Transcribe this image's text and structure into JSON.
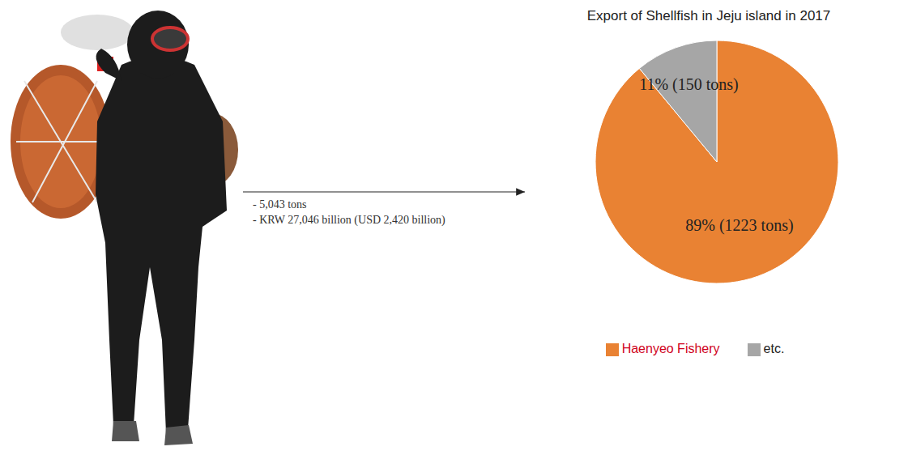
{
  "chart_data": {
    "type": "pie",
    "title": "Export of Shellfish in Jeju island in 2017",
    "categories": [
      "Haenyeo Fishery",
      "etc."
    ],
    "values": [
      89,
      11
    ],
    "value_labels": [
      "89% (1223 tons)",
      "11% (150 tons)"
    ],
    "colors": [
      "#e98233",
      "#a6a6a6"
    ],
    "data_labels": true,
    "legend": "bottom",
    "annotations": [
      "- 5,043 tons",
      "- KRW 27,046 billion (USD 2,420 billion)"
    ]
  }
}
